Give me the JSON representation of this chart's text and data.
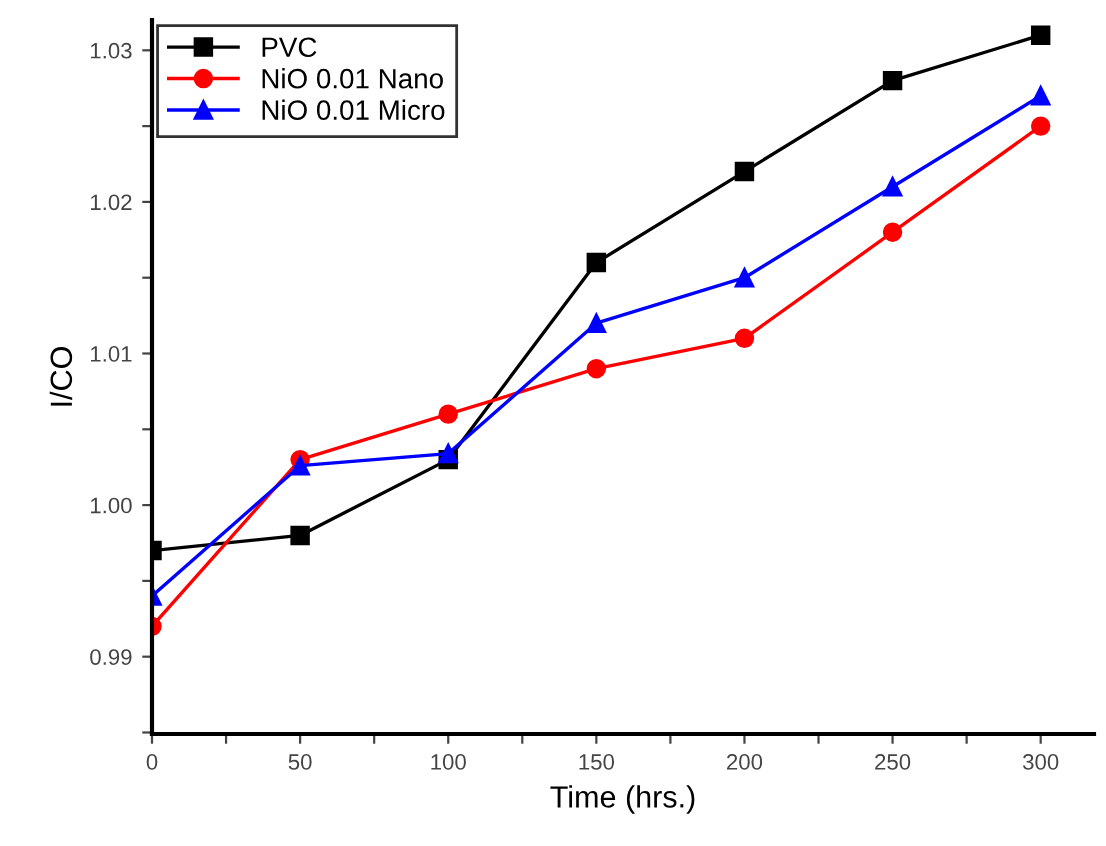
{
  "chart_data": {
    "type": "line",
    "xlabel": "Time (hrs.)",
    "ylabel": "I/CO",
    "x": [
      0,
      50,
      100,
      150,
      200,
      250,
      300
    ],
    "series": [
      {
        "name": "PVC",
        "color": "#000000",
        "marker": "square",
        "values": [
          0.997,
          0.998,
          1.003,
          1.016,
          1.022,
          1.028,
          1.031
        ]
      },
      {
        "name": "NiO 0.01 Nano",
        "color": "#ff0000",
        "marker": "circle",
        "values": [
          0.992,
          1.003,
          1.006,
          1.009,
          1.011,
          1.018,
          1.025
        ]
      },
      {
        "name": "NiO 0.01 Micro",
        "color": "#0000ff",
        "marker": "triangle",
        "values": [
          0.994,
          1.0026,
          1.0034,
          1.012,
          1.015,
          1.021,
          1.027
        ]
      }
    ],
    "xlim": [
      0,
      318
    ],
    "ylim": [
      0.9849,
      1.032
    ],
    "xticks": [
      0,
      {
        "value": 25,
        "label": null
      },
      50,
      {
        "value": 75,
        "label": null
      },
      100,
      {
        "value": 125,
        "label": null
      },
      150,
      {
        "value": 175,
        "label": null
      },
      200,
      {
        "value": 225,
        "label": null
      },
      250,
      {
        "value": 275,
        "label": null
      },
      300
    ],
    "yticks": [
      {
        "value": 0.985,
        "label": null
      },
      0.99,
      {
        "value": 0.995,
        "label": null
      },
      {
        "value": 1.0,
        "label": "1.00"
      },
      {
        "value": 1.005,
        "label": null
      },
      1.01,
      {
        "value": 1.015,
        "label": null
      },
      1.02,
      {
        "value": 1.025,
        "label": null
      },
      1.03
    ],
    "legend": "top left",
    "grid": false
  }
}
